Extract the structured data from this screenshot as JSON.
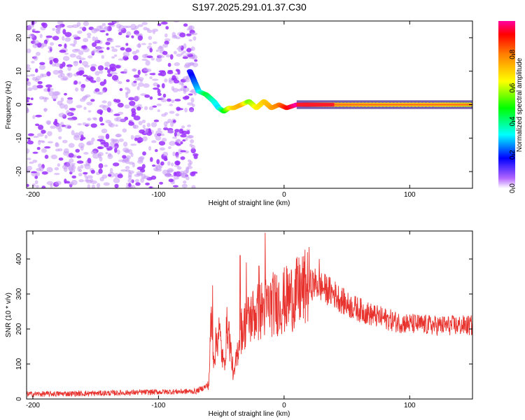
{
  "title": "S197.2025.291.01.37.C30",
  "colors": {
    "spec_points": "#9b30ff",
    "spec_points_light": "#c79af5",
    "line": "#e8322d",
    "frame": "#000000"
  },
  "chart_data": [
    {
      "type": "heatmap",
      "title": "S197.2025.291.01.37.C30",
      "xlabel": "Height of straight line (km)",
      "ylabel": "Frequency (Hz)",
      "xlim": [
        -205,
        150
      ],
      "ylim": [
        -25,
        25
      ],
      "xticks": [
        -200,
        -100,
        0,
        100
      ],
      "yticks": [
        -20,
        -10,
        0,
        10,
        20
      ],
      "noise_region_x": [
        -205,
        -70
      ],
      "ridge": {
        "description": "frequency track of strongest spectral amplitude",
        "x": [
          -75,
          -68,
          -62,
          -56,
          -52,
          -48,
          -44,
          -40,
          -34,
          -28,
          -22,
          -16,
          -10,
          -4,
          2,
          10,
          40,
          80,
          120,
          150
        ],
        "freq": [
          10,
          4,
          3,
          1,
          -1,
          -2,
          -1,
          -1,
          0,
          1,
          -1,
          1,
          -1,
          0,
          -1,
          0,
          0,
          0,
          0,
          0
        ],
        "amplitude": [
          0.15,
          0.3,
          0.45,
          0.35,
          0.3,
          0.45,
          0.6,
          0.7,
          0.75,
          0.55,
          0.65,
          0.7,
          0.75,
          0.8,
          0.9,
          1.0,
          0.7,
          0.65,
          0.65,
          0.6
        ]
      },
      "colorbar": {
        "label": "Normalized spectral amplitude",
        "range": [
          0,
          1
        ],
        "ticks": [
          "0.0",
          "0.2",
          "0.4",
          "0.6",
          "0.8"
        ]
      }
    },
    {
      "type": "line",
      "xlabel": "Height of straight line (km)",
      "ylabel": "SNR (10 * v/v)",
      "xlim": [
        -205,
        150
      ],
      "ylim": [
        0,
        480
      ],
      "xticks": [
        -200,
        -100,
        0,
        100
      ],
      "yticks": [
        0,
        100,
        200,
        300,
        400
      ],
      "series": [
        {
          "name": "SNR",
          "x": [
            -205,
            -150,
            -100,
            -70,
            -60,
            -58,
            -56,
            -52,
            -48,
            -45,
            -40,
            -35,
            -30,
            -25,
            -20,
            -15,
            -10,
            0,
            10,
            20,
            25,
            30,
            40,
            50,
            60,
            70,
            80,
            90,
            100,
            120,
            150
          ],
          "mean": [
            14,
            16,
            20,
            22,
            40,
            230,
            120,
            200,
            90,
            220,
            60,
            190,
            220,
            240,
            250,
            260,
            270,
            280,
            300,
            325,
            330,
            320,
            300,
            270,
            255,
            240,
            230,
            220,
            215,
            210,
            210
          ],
          "spikes": [
            [
              -57,
              325
            ],
            [
              -35,
              410
            ],
            [
              -15,
              475
            ],
            [
              -20,
              380
            ],
            [
              -30,
              390
            ],
            [
              28,
              400
            ]
          ]
        }
      ]
    }
  ]
}
